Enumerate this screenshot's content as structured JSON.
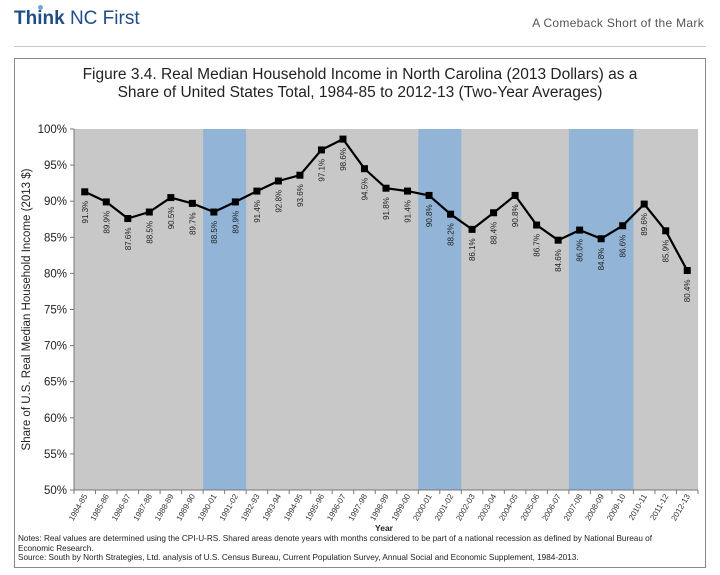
{
  "header": {
    "logo_bold": "Think",
    "logo_rest": " NC First",
    "subtitle": "A Comeback Short of the Mark"
  },
  "colors": {
    "plot_bg": "#c8c8c8",
    "recession": "#92b4d6",
    "line": "#000000",
    "brand": "#1f4e86"
  },
  "chart_data": {
    "type": "line",
    "title_line1": "Figure 3.4. Real Median Household Income in North Carolina (2013 Dollars) as a",
    "title_line2": "Share of United States Total, 1984-85 to 2012-13 (Two-Year Averages)",
    "xlabel": "Year",
    "ylabel": "Share of U.S. Real Median Household Income (2013 $)",
    "ylim": [
      50,
      100
    ],
    "yticks": [
      50,
      55,
      60,
      65,
      70,
      75,
      80,
      85,
      90,
      95,
      100
    ],
    "ytick_labels": [
      "50%",
      "55%",
      "60%",
      "65%",
      "70%",
      "75%",
      "80%",
      "85%",
      "90%",
      "95%",
      "100%"
    ],
    "categories": [
      "1984-85",
      "1985-86",
      "1986-87",
      "1987-88",
      "1988-89",
      "1989-90",
      "1990-01",
      "1991-02",
      "1992-93",
      "1993-94",
      "1994-95",
      "1995-96",
      "1996-07",
      "1997-98",
      "1998-99",
      "1999-00",
      "2000-01",
      "2001-02",
      "2002-03",
      "2003-04",
      "2004-05",
      "2005-06",
      "2006-07",
      "2007-08",
      "2008-09",
      "2009-10",
      "2010-11",
      "2011-12",
      "2012-13"
    ],
    "values": [
      91.3,
      89.9,
      87.6,
      88.5,
      90.5,
      89.7,
      88.5,
      89.9,
      91.4,
      92.8,
      93.6,
      97.1,
      98.6,
      94.5,
      91.8,
      91.4,
      90.8,
      88.2,
      86.1,
      88.4,
      90.8,
      86.7,
      84.6,
      86.0,
      84.8,
      86.6,
      89.6,
      85.9,
      80.4
    ],
    "data_labels": [
      "91.3%",
      "89.9%",
      "87.6%",
      "88.5%",
      "90.5%",
      "89.7%",
      "88.5%",
      "89.9%",
      "91.4%",
      "92.8%",
      "93.6%",
      "97.1%",
      "98.6%",
      "94.5%",
      "91.8%",
      "91.4%",
      "90.8%",
      "88.2%",
      "86.1%",
      "88.4%",
      "90.8%",
      "86.7%",
      "84.6%",
      "86.0%",
      "84.8%",
      "86.6%",
      "89.6%",
      "85.9%",
      "80.4%"
    ],
    "recession_bands": [
      {
        "from": "1990-01",
        "to": "1991-02"
      },
      {
        "from": "2000-01",
        "to": "2001-02"
      },
      {
        "from": "2007-08",
        "to": "2009-10"
      }
    ],
    "grid": false,
    "legend": "none"
  },
  "notes": {
    "line1": "Notes:  Real values are determined using the CPI-U-RS. Shared areas denote years with months considered to be part of a national recession as defined by National Bureau of",
    "line2": "Economic Research.",
    "line3": "Source:  South by North Strategies, Ltd. analysis of U.S. Census Bureau, Current Population Survey, Annual Social and Economic Supplement, 1984-2013."
  }
}
